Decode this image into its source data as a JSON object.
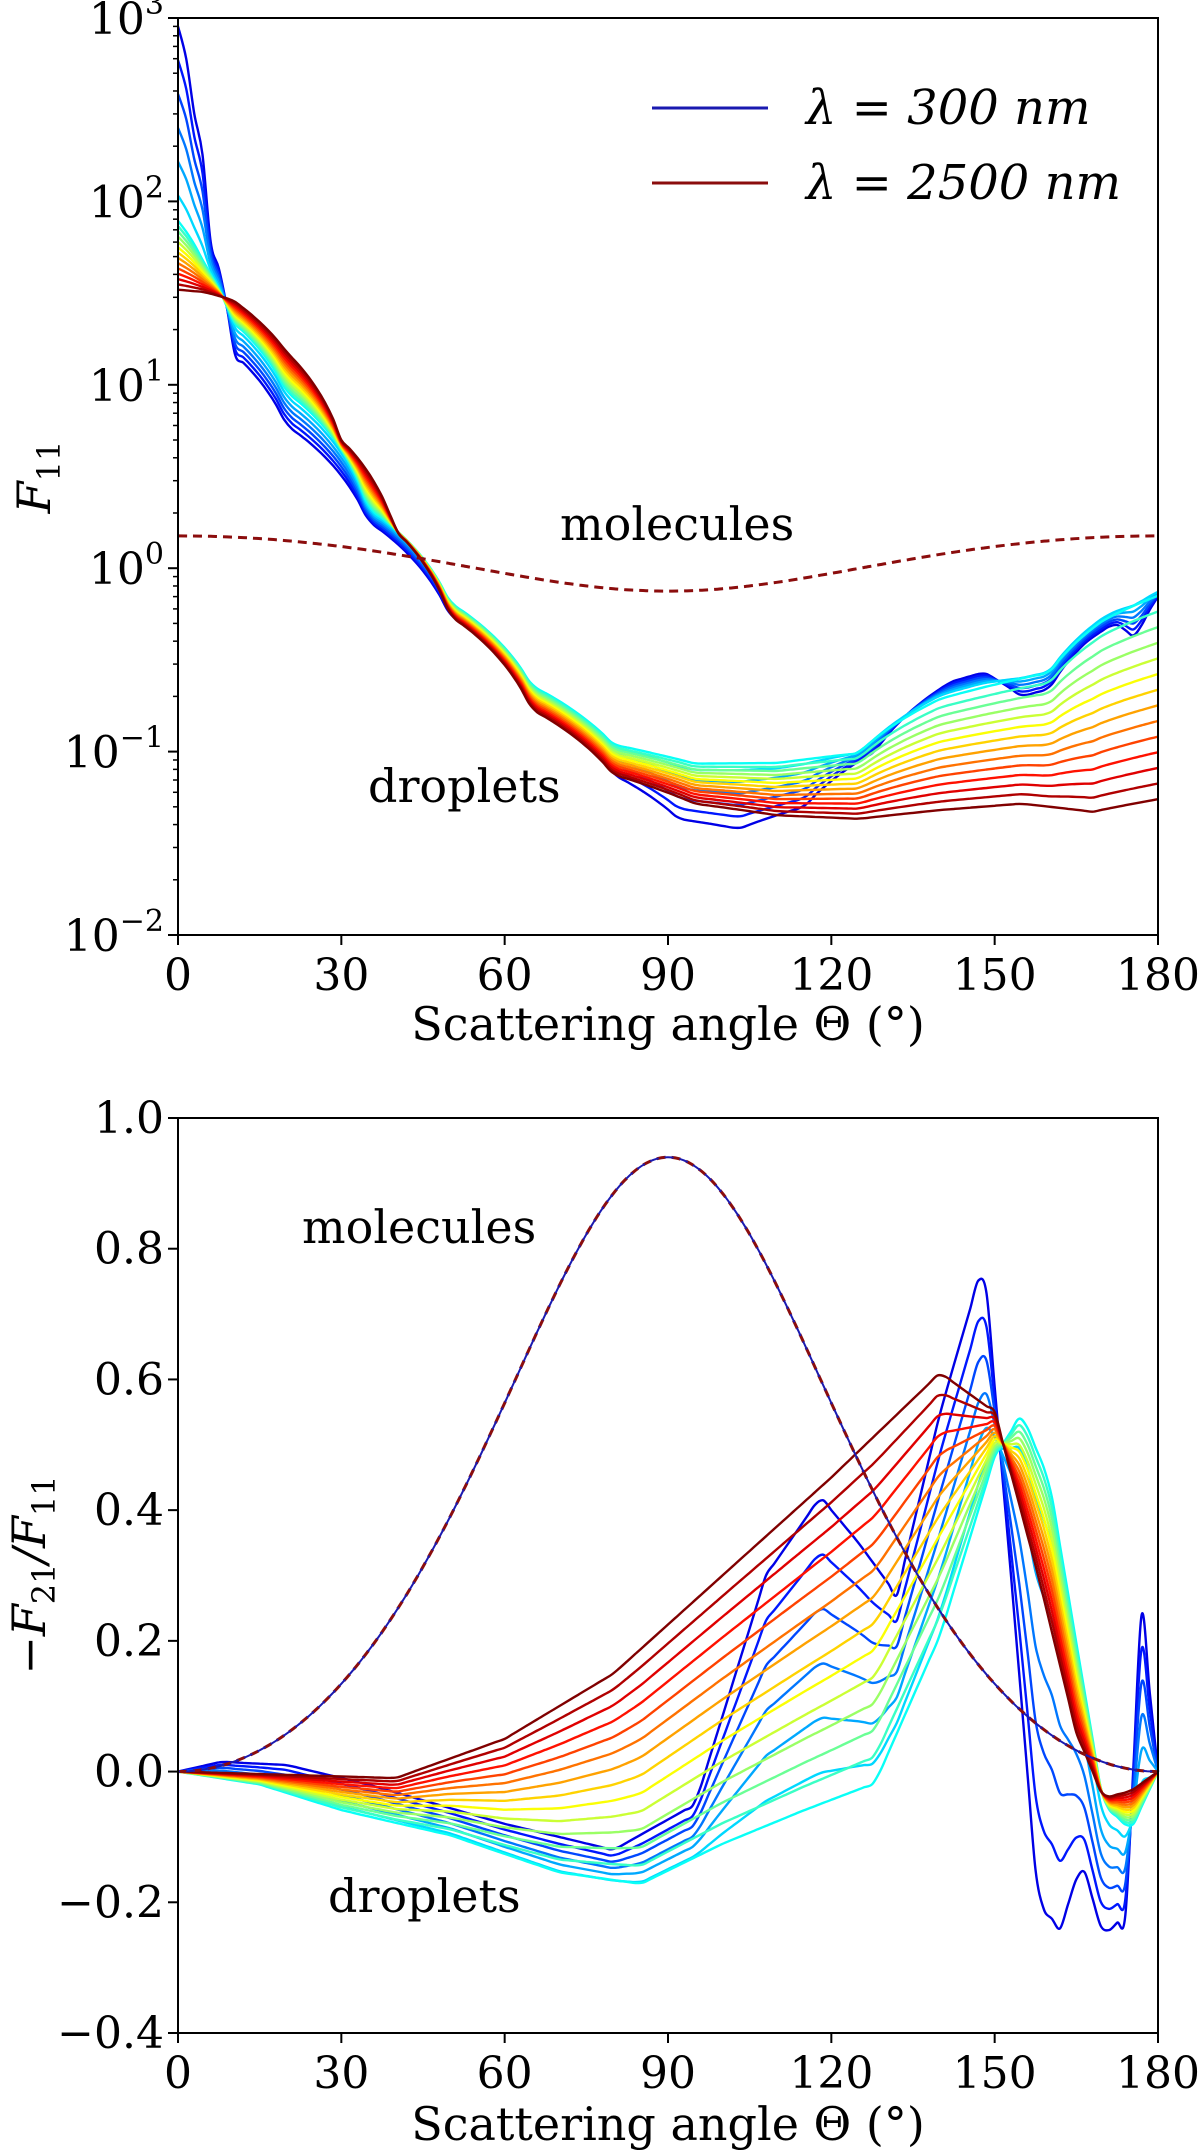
{
  "chart_data": [
    {
      "type": "line",
      "name": "top-f11",
      "xlabel": "Scattering angle Θ (°)",
      "ylabel": "F",
      "ylabel_sub": "11",
      "yscale": "log",
      "xlim": [
        0,
        180
      ],
      "ylim": [
        0.01,
        1000
      ],
      "xticks": [
        "0",
        "30",
        "60",
        "90",
        "120",
        "150",
        "180"
      ],
      "yticks": [
        {
          "base": "10",
          "exp": "3"
        },
        {
          "base": "10",
          "exp": "2"
        },
        {
          "base": "10",
          "exp": "1"
        },
        {
          "base": "10",
          "exp": "0"
        },
        {
          "base": "10",
          "exp": "−1"
        },
        {
          "base": "10",
          "exp": "−2"
        }
      ],
      "annotations": {
        "molecules": "molecules",
        "droplets": "droplets"
      },
      "legend": {
        "placement": "top-right",
        "entries": [
          {
            "label": "λ = 300 nm",
            "color": "#1a1ab0"
          },
          {
            "label": "λ = 2500 nm",
            "color": "#8b0d0d"
          }
        ]
      },
      "series_family": {
        "count": 20,
        "colormap": "jet",
        "description": "Droplet phase functions for wavelengths from 300 nm (blue) to 2500 nm (dark red)",
        "blue_anchors": [
          [
            0,
            900
          ],
          [
            3,
            300
          ],
          [
            6,
            60
          ],
          [
            10,
            15
          ],
          [
            20,
            6
          ],
          [
            35,
            1.8
          ],
          [
            50,
            0.55
          ],
          [
            65,
            0.2
          ],
          [
            80,
            0.075
          ],
          [
            92,
            0.043
          ],
          [
            103,
            0.038
          ],
          [
            115,
            0.05
          ],
          [
            128,
            0.1
          ],
          [
            142,
            0.24
          ],
          [
            148,
            0.27
          ],
          [
            155,
            0.2
          ],
          [
            160,
            0.22
          ],
          [
            167,
            0.4
          ],
          [
            172,
            0.5
          ],
          [
            176,
            0.42
          ],
          [
            180,
            0.7
          ]
        ],
        "red_anchors": [
          [
            0,
            33
          ],
          [
            5,
            32
          ],
          [
            10,
            29
          ],
          [
            20,
            15
          ],
          [
            30,
            5
          ],
          [
            40,
            1.6
          ],
          [
            50,
            0.55
          ],
          [
            65,
            0.17
          ],
          [
            80,
            0.075
          ],
          [
            95,
            0.052
          ],
          [
            110,
            0.045
          ],
          [
            125,
            0.043
          ],
          [
            140,
            0.048
          ],
          [
            155,
            0.052
          ],
          [
            168,
            0.047
          ],
          [
            180,
            0.055
          ]
        ],
        "cyan_anchors": [
          [
            0,
            80
          ],
          [
            5,
            45
          ],
          [
            10,
            22
          ],
          [
            20,
            9
          ],
          [
            35,
            2.1
          ],
          [
            50,
            0.65
          ],
          [
            65,
            0.23
          ],
          [
            80,
            0.11
          ],
          [
            95,
            0.087
          ],
          [
            110,
            0.088
          ],
          [
            125,
            0.1
          ],
          [
            140,
            0.2
          ],
          [
            150,
            0.24
          ],
          [
            160,
            0.28
          ],
          [
            170,
            0.55
          ],
          [
            180,
            0.75
          ]
        ]
      },
      "molecules": {
        "label": "molecules",
        "style": "dashed",
        "color": "#8b0d0d",
        "formula": "0.75 * (1 + cos^2 Θ)",
        "values": [
          [
            0,
            1.5
          ],
          [
            45,
            1.125
          ],
          [
            90,
            0.75
          ],
          [
            135,
            1.125
          ],
          [
            180,
            1.5
          ]
        ]
      }
    },
    {
      "type": "line",
      "name": "bottom-polarization",
      "xlabel": "Scattering angle Θ (°)",
      "ylabel": "−F",
      "ylabel_sub1": "21",
      "ylabel_mid": "/F",
      "ylabel_sub2": "11",
      "xlim": [
        0,
        180
      ],
      "ylim": [
        -0.4,
        1.0
      ],
      "xticks": [
        "0",
        "30",
        "60",
        "90",
        "120",
        "150",
        "180"
      ],
      "yticks": [
        "1.0",
        "0.8",
        "0.6",
        "0.4",
        "0.2",
        "0.0",
        "−0.2",
        "−0.4"
      ],
      "annotations": {
        "molecules": "molecules",
        "droplets": "droplets"
      },
      "series_family": {
        "count": 20,
        "colormap": "jet",
        "description": "Degree of linear polarization of droplets for wavelengths from 300 nm to 2500 nm",
        "blue_anchors": [
          [
            0,
            0
          ],
          [
            8,
            0.015
          ],
          [
            20,
            0.01
          ],
          [
            35,
            -0.02
          ],
          [
            60,
            -0.08
          ],
          [
            80,
            -0.12
          ],
          [
            95,
            -0.05
          ],
          [
            108,
            0.3
          ],
          [
            118,
            0.42
          ],
          [
            125,
            0.35
          ],
          [
            132,
            0.27
          ],
          [
            140,
            0.55
          ],
          [
            148,
            0.78
          ],
          [
            153,
            0.3
          ],
          [
            158,
            -0.2
          ],
          [
            162,
            -0.24
          ],
          [
            166,
            -0.14
          ],
          [
            170,
            -0.25
          ],
          [
            174,
            -0.22
          ],
          [
            177,
            0.24
          ],
          [
            180,
            0
          ]
        ],
        "red_anchors": [
          [
            0,
            0
          ],
          [
            20,
            -0.005
          ],
          [
            40,
            -0.01
          ],
          [
            60,
            0.05
          ],
          [
            80,
            0.15
          ],
          [
            100,
            0.3
          ],
          [
            120,
            0.45
          ],
          [
            140,
            0.61
          ],
          [
            150,
            0.55
          ],
          [
            158,
            0.3
          ],
          [
            165,
            0.06
          ],
          [
            170,
            -0.04
          ],
          [
            175,
            -0.03
          ],
          [
            180,
            0
          ]
        ],
        "cyan_anchors": [
          [
            0,
            0
          ],
          [
            15,
            -0.02
          ],
          [
            30,
            -0.06
          ],
          [
            50,
            -0.1
          ],
          [
            70,
            -0.16
          ],
          [
            85,
            -0.18
          ],
          [
            100,
            -0.12
          ],
          [
            115,
            -0.07
          ],
          [
            128,
            -0.03
          ],
          [
            140,
            0.2
          ],
          [
            150,
            0.48
          ],
          [
            155,
            0.55
          ],
          [
            160,
            0.45
          ],
          [
            165,
            0.2
          ],
          [
            170,
            -0.05
          ],
          [
            175,
            -0.09
          ],
          [
            180,
            0
          ]
        ]
      },
      "molecules": {
        "label": "molecules",
        "style": "dashed",
        "color": "#8b0d0d",
        "formula": "0.94 * sin^2 Θ / (1 + cos^2 Θ)",
        "values": [
          [
            0,
            0.0
          ],
          [
            45,
            0.313
          ],
          [
            90,
            0.94
          ],
          [
            135,
            0.313
          ],
          [
            180,
            0.0
          ]
        ]
      }
    }
  ]
}
